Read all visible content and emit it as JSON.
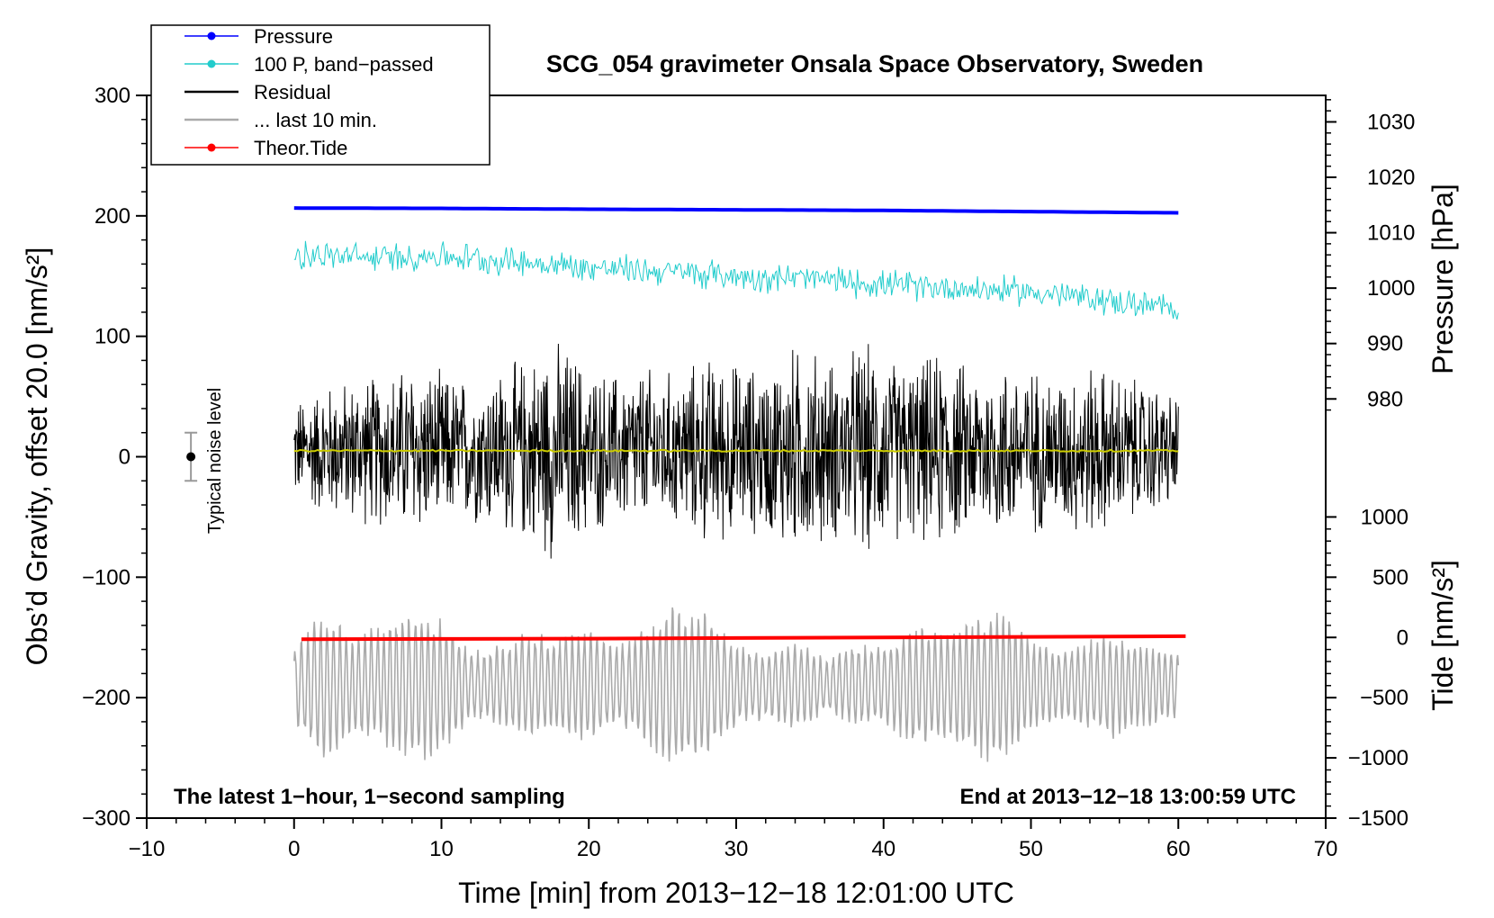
{
  "chart_data": {
    "type": "line",
    "title": "SCG_054 gravimeter Onsala Space Observatory, Sweden",
    "xlabel": "Time [min] from 2013−12−18 12:01:00 UTC",
    "ylabel_left": "Obs’d Gravity, offset 20.0 [nm/s²]",
    "ylabel_pressure": "Pressure [hPa]",
    "ylabel_tide": "Tide [nm/s²]",
    "xlim": [
      -10,
      70
    ],
    "ylim": [
      -300,
      300
    ],
    "x_ticks": [
      -10,
      0,
      10,
      20,
      30,
      40,
      50,
      60,
      70
    ],
    "x_tick_labels": [
      "−10",
      "0",
      "10",
      "20",
      "30",
      "40",
      "50",
      "60",
      "70"
    ],
    "y_ticks": [
      -300,
      -200,
      -100,
      0,
      100,
      200,
      300
    ],
    "y_tick_labels": [
      "−300",
      "−200",
      "−100",
      "0",
      "100",
      "200",
      "300"
    ],
    "pressure_axis": {
      "ticks": [
        980,
        990,
        1000,
        1010,
        1020,
        1030
      ],
      "tick_labels": [
        "980",
        "990",
        "1000",
        "1010",
        "1020",
        "1030"
      ],
      "gravity_at_1000": 140,
      "gravity_per_hpa": 4.6
    },
    "tide_axis": {
      "ticks": [
        -1500,
        -1000,
        -500,
        0,
        500,
        1000
      ],
      "tick_labels": [
        "−1500",
        "−1000",
        "−500",
        "0",
        "500",
        "1000"
      ],
      "gravity_at_0": -150,
      "gravity_per_unit": 0.1
    },
    "legend": [
      {
        "label": "Pressure",
        "color": "#0000ff",
        "marker": true
      },
      {
        "label": "100 P, band−passed",
        "color": "#22cccc",
        "marker": true
      },
      {
        "label": "Residual",
        "color": "#000000",
        "marker": false
      },
      {
        "label": "... last 10 min.",
        "color": "#aaaaaa",
        "marker": false
      },
      {
        "label": "Theor.Tide",
        "color": "#ff0000",
        "marker": true
      }
    ],
    "annotations": {
      "left": "The latest 1−hour, 1−second sampling",
      "right": "End at 2013−12−18 13:00:59 UTC",
      "noise_label": "Typical noise level"
    },
    "noise_bar": {
      "x": -7,
      "center": 0,
      "half_range": 20
    },
    "series": [
      {
        "name": "Pressure",
        "color": "#0000ff",
        "x": [
          0,
          10,
          20,
          30,
          40,
          50,
          60
        ],
        "values": [
          206.5,
          206.2,
          205.5,
          205,
          204.5,
          203.5,
          202.5
        ]
      },
      {
        "name": "100 P, band−passed",
        "color": "#22cccc",
        "x": [
          0,
          5,
          10,
          15,
          20,
          25,
          30,
          35,
          40,
          45,
          50,
          55,
          60
        ],
        "values": [
          168,
          165,
          167,
          162,
          157,
          154,
          150,
          148,
          143,
          140,
          137,
          130,
          122
        ],
        "noise_amplitude": 12
      },
      {
        "name": "Residual",
        "color": "#000000",
        "x": [
          0,
          60
        ],
        "mean": 5,
        "amplitude_envelope": [
          [
            0,
            45
          ],
          [
            2,
            60
          ],
          [
            4,
            65
          ],
          [
            6,
            70
          ],
          [
            8,
            80
          ],
          [
            10,
            70
          ],
          [
            12,
            65
          ],
          [
            14,
            75
          ],
          [
            16,
            85
          ],
          [
            17.5,
            100
          ],
          [
            19,
            90
          ],
          [
            20,
            75
          ],
          [
            22,
            70
          ],
          [
            24,
            75
          ],
          [
            26,
            70
          ],
          [
            28,
            85
          ],
          [
            30,
            80
          ],
          [
            32,
            75
          ],
          [
            33.5,
            95
          ],
          [
            35.5,
            90
          ],
          [
            37,
            80
          ],
          [
            38.5,
            100
          ],
          [
            40,
            85
          ],
          [
            42,
            80
          ],
          [
            44,
            90
          ],
          [
            46,
            75
          ],
          [
            48,
            80
          ],
          [
            50,
            75
          ],
          [
            52,
            70
          ],
          [
            54,
            80
          ],
          [
            55,
            75
          ],
          [
            57,
            65
          ],
          [
            58.5,
            60
          ],
          [
            60,
            50
          ]
        ]
      },
      {
        "name": "Residual (smoothed)",
        "color": "#cccc00",
        "x": [
          0,
          60
        ],
        "values": [
          5,
          5
        ]
      },
      {
        "name": "... last 10 min.",
        "color": "#aaaaaa",
        "x": [
          0,
          60
        ],
        "mean": -190,
        "amplitude_envelope": [
          [
            0,
            30
          ],
          [
            2,
            55
          ],
          [
            4,
            40
          ],
          [
            6,
            45
          ],
          [
            8,
            60
          ],
          [
            10,
            50
          ],
          [
            12,
            25
          ],
          [
            14,
            30
          ],
          [
            16,
            40
          ],
          [
            18,
            35
          ],
          [
            20,
            45
          ],
          [
            22,
            30
          ],
          [
            24,
            45
          ],
          [
            26,
            65
          ],
          [
            28,
            55
          ],
          [
            30,
            30
          ],
          [
            32,
            25
          ],
          [
            34,
            35
          ],
          [
            36,
            20
          ],
          [
            38,
            30
          ],
          [
            40,
            30
          ],
          [
            42,
            45
          ],
          [
            44,
            40
          ],
          [
            46,
            50
          ],
          [
            48,
            60
          ],
          [
            50,
            35
          ],
          [
            52,
            25
          ],
          [
            54,
            35
          ],
          [
            56,
            40
          ],
          [
            58,
            30
          ],
          [
            60,
            25
          ]
        ]
      },
      {
        "name": "Theor.Tide",
        "color": "#ff0000",
        "x": [
          0.5,
          10,
          20,
          30,
          40,
          50,
          60.5
        ],
        "values": [
          -151.5,
          -151.2,
          -151,
          -150.5,
          -150,
          -149.5,
          -149
        ]
      }
    ]
  }
}
